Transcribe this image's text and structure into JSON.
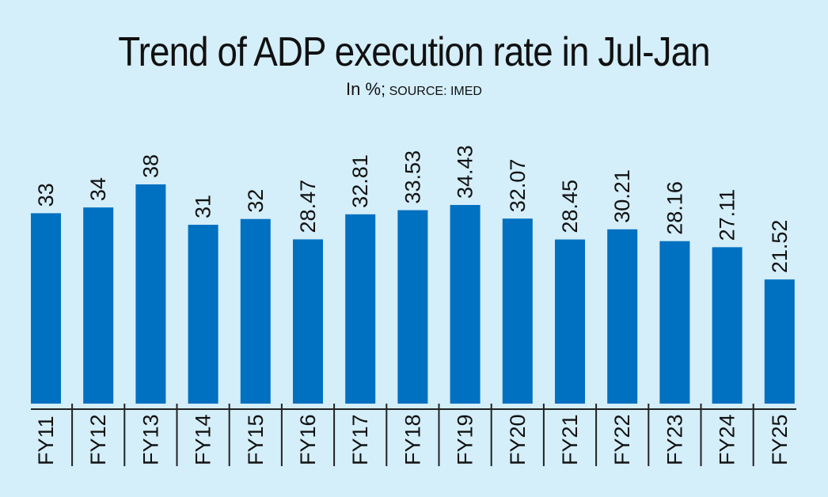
{
  "chart_data": {
    "type": "bar",
    "title": "Trend of ADP execution rate in Jul-Jan",
    "subtitle_unit": "In %;",
    "subtitle_source": "SOURCE: IMED",
    "xlabel": "",
    "ylabel": "",
    "categories": [
      "FY11",
      "FY12",
      "FY13",
      "FY14",
      "FY15",
      "FY16",
      "FY17",
      "FY18",
      "FY19",
      "FY20",
      "FY21",
      "FY22",
      "FY23",
      "FY24",
      "FY25"
    ],
    "values": [
      33,
      34,
      38,
      31,
      32,
      28.47,
      32.81,
      33.53,
      34.43,
      32.07,
      28.45,
      30.21,
      28.16,
      27.11,
      21.52
    ],
    "value_labels": [
      "33",
      "34",
      "38",
      "31",
      "32",
      "28.47",
      "32.81",
      "33.53",
      "34.43",
      "32.07",
      "28.45",
      "30.21",
      "28.16",
      "27.11",
      "21.52"
    ],
    "ylim": [
      0,
      38
    ],
    "grid": false,
    "bar_color": "#0070c0",
    "background_color": "#d4eefa"
  }
}
